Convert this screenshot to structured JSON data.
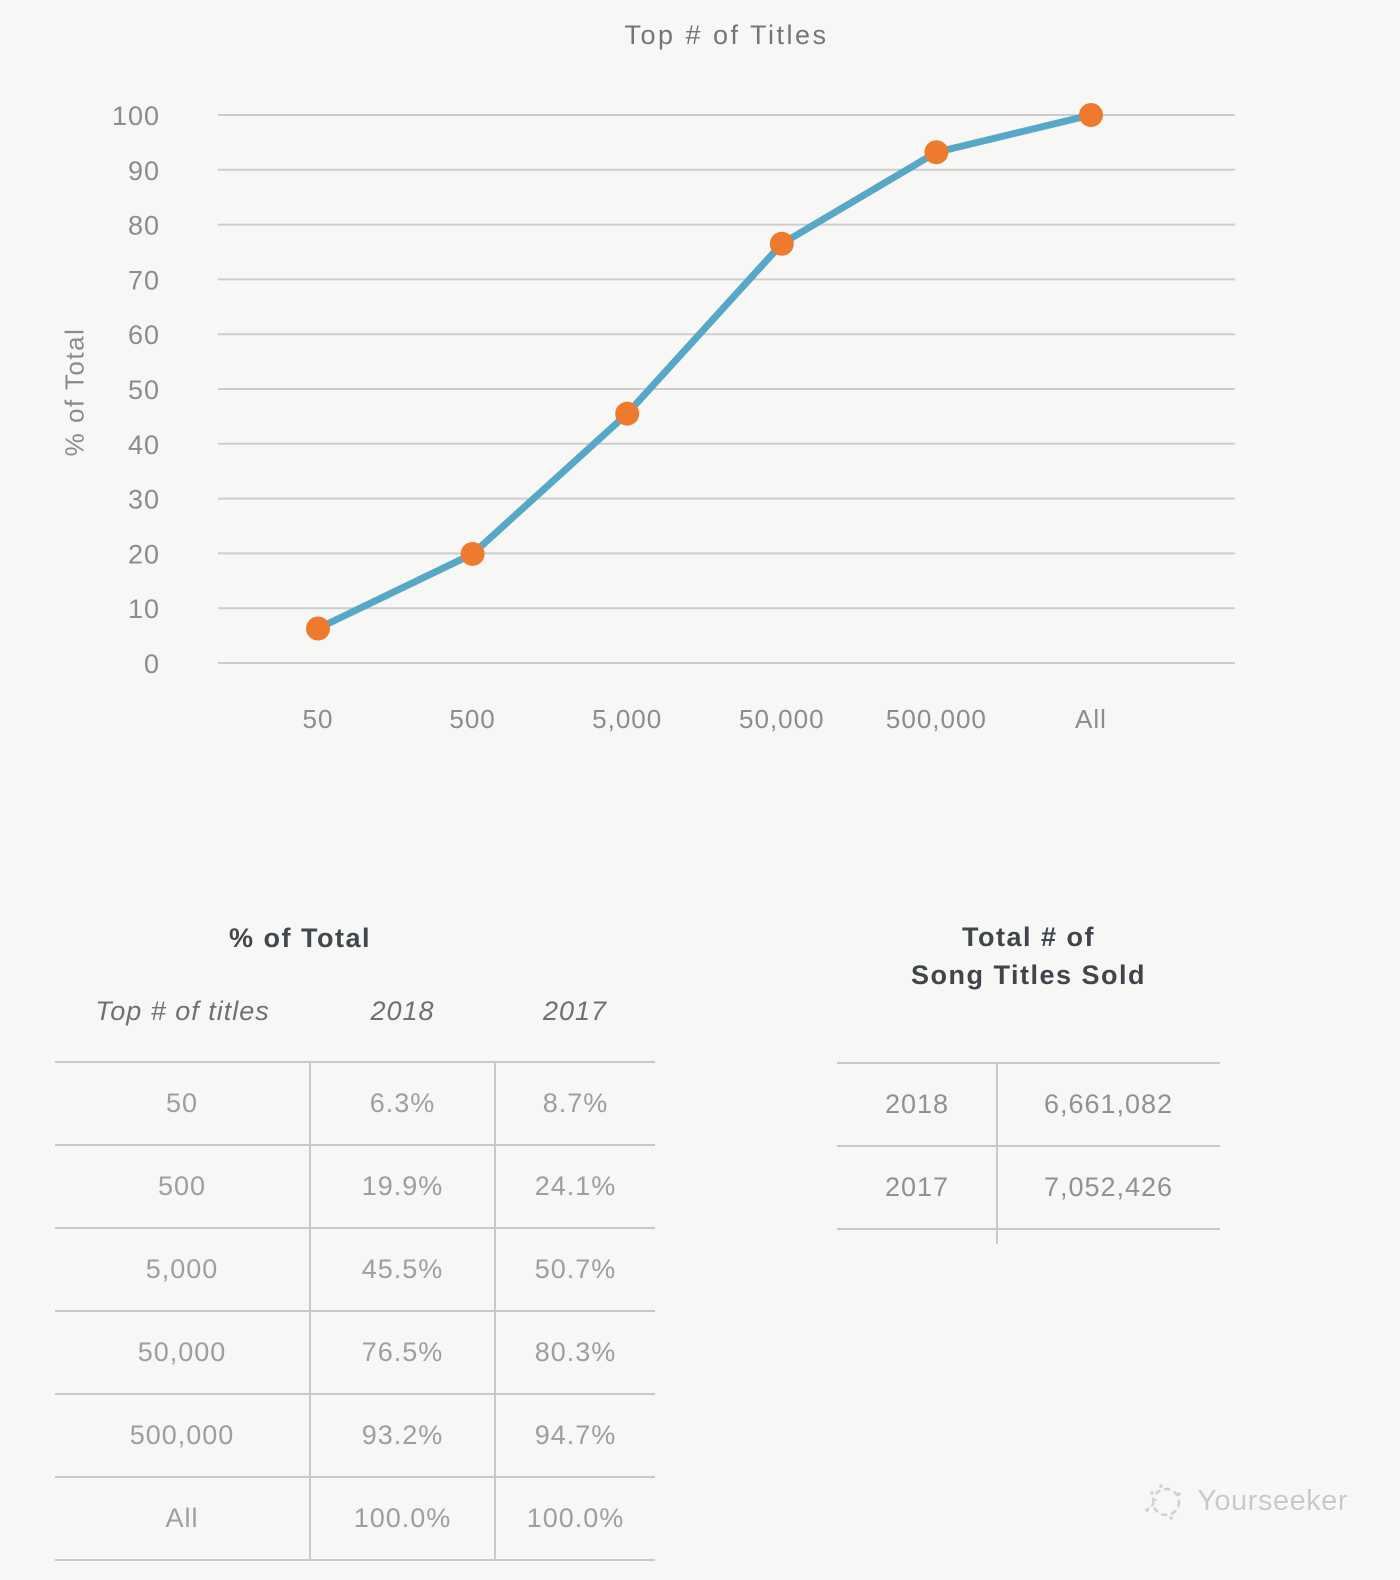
{
  "chart_data": {
    "type": "line",
    "title": "Top # of Titles",
    "xlabel": "",
    "ylabel": "% of Total",
    "categories": [
      "50",
      "500",
      "5,000",
      "50,000",
      "500,000",
      "All"
    ],
    "series": [
      {
        "name": "2018",
        "values": [
          6.3,
          19.9,
          45.5,
          76.5,
          93.2,
          100.0
        ]
      }
    ],
    "ylim": [
      0,
      100
    ],
    "ytick_step": 10,
    "grid": "horizontal",
    "legend": "none",
    "line_color": "#57a7c7",
    "point_color": "#ee7b2d",
    "grid_color": "#cdcdcd",
    "tick_color": "#8c8c8c"
  },
  "tables": {
    "percent_of_total": {
      "title": "% of Total",
      "columns": [
        "Top # of titles",
        "2018",
        "2017"
      ],
      "rows": [
        [
          "50",
          "6.3%",
          "8.7%"
        ],
        [
          "500",
          "19.9%",
          "24.1%"
        ],
        [
          "5,000",
          "45.5%",
          "50.7%"
        ],
        [
          "50,000",
          "76.5%",
          "80.3%"
        ],
        [
          "500,000",
          "93.2%",
          "94.7%"
        ],
        [
          "All",
          "100.0%",
          "100.0%"
        ]
      ]
    },
    "total_titles_sold": {
      "title_line1": "Total # of",
      "title_line2": "Song Titles Sold",
      "rows": [
        [
          "2018",
          "6,661,082"
        ],
        [
          "2017",
          "7,052,426"
        ]
      ]
    }
  },
  "watermark": {
    "text": "Yourseeker"
  }
}
